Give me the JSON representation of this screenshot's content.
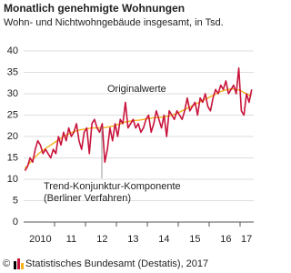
{
  "chart_data": {
    "type": "line",
    "title": "Monatlich genehmigte Wohnungen",
    "subtitle": "Wohn- und Nichtwohngebäude insgesamt, in Tsd.",
    "categories": [
      null,
      null,
      null,
      null,
      null,
      null,
      "2010",
      null,
      null,
      null,
      null,
      null,
      null,
      null,
      null,
      null,
      null,
      null,
      "11",
      null,
      null,
      null,
      null,
      null,
      null,
      null,
      null,
      null,
      null,
      null,
      "12",
      null,
      null,
      null,
      null,
      null,
      null,
      null,
      null,
      null,
      null,
      null,
      "13",
      null,
      null,
      null,
      null,
      null,
      null,
      null,
      null,
      null,
      null,
      null,
      "14",
      null,
      null,
      null,
      null,
      null,
      null,
      null,
      null,
      null,
      null,
      null,
      "15",
      null,
      null,
      null,
      null,
      null,
      null,
      null,
      null,
      null,
      null,
      null,
      "16",
      null,
      null,
      null,
      null,
      null,
      null,
      null,
      "17",
      null,
      null
    ],
    "series": [
      {
        "name": "Originalwerte",
        "color": "#c8143c",
        "values": [
          12,
          13,
          15,
          14,
          17,
          19,
          18,
          16,
          17,
          16,
          15,
          17,
          16,
          20,
          18,
          21,
          19,
          22,
          20,
          21,
          23,
          19,
          17,
          21,
          22,
          16,
          23,
          24,
          22,
          21,
          23,
          14,
          17,
          22,
          19,
          23,
          20,
          24,
          23,
          28,
          22,
          23,
          24,
          22,
          23,
          21,
          22,
          24,
          25,
          21,
          23,
          26,
          24,
          22,
          25,
          20,
          26,
          25,
          24,
          26,
          25,
          24,
          26,
          29,
          26,
          27,
          28,
          25,
          29,
          28,
          30,
          27,
          26,
          29,
          31,
          30,
          32,
          31,
          33,
          30,
          31,
          32,
          30,
          36,
          26,
          25,
          30,
          28,
          31
        ]
      },
      {
        "name": "Trend-Konjunktur-Komponente",
        "color": "#f5b21b",
        "values": [
          12.5,
          13.2,
          13.9,
          14.6,
          15.2,
          15.8,
          16.3,
          16.8,
          17.2,
          17.6,
          18.0,
          18.4,
          18.8,
          19.2,
          19.6,
          20.0,
          20.3,
          20.6,
          20.9,
          21.1,
          21.3,
          21.5,
          21.6,
          21.7,
          21.8,
          21.9,
          22.0,
          22.0,
          22.0,
          22.0,
          22.0,
          22.1,
          22.2,
          22.3,
          22.4,
          22.6,
          22.8,
          23.0,
          23.2,
          23.4,
          23.5,
          23.6,
          23.7,
          23.8,
          23.8,
          23.9,
          24.0,
          24.1,
          24.2,
          24.3,
          24.4,
          24.4,
          24.5,
          24.5,
          24.6,
          24.7,
          24.8,
          25.0,
          25.2,
          25.4,
          25.7,
          26.0,
          26.3,
          26.6,
          26.9,
          27.2,
          27.5,
          27.8,
          28.1,
          28.4,
          28.7,
          29.0,
          29.3,
          29.6,
          29.9,
          30.2,
          30.5,
          30.7,
          30.9,
          31.0,
          31.1,
          31.1,
          31.0,
          30.9,
          30.6,
          30.3,
          30.0,
          29.7,
          29.5
        ]
      }
    ],
    "annotations": [
      "Originalwerte",
      "Trend-Konjunktur-Komponente",
      "(Berliner Verfahren)"
    ],
    "ylim": [
      0,
      40
    ],
    "yticks": [
      0,
      5,
      10,
      15,
      20,
      25,
      30,
      35,
      40
    ],
    "grid": true,
    "source": {
      "copyright": "©",
      "text": "Statistisches Bundesamt (Destatis), 2017"
    }
  }
}
